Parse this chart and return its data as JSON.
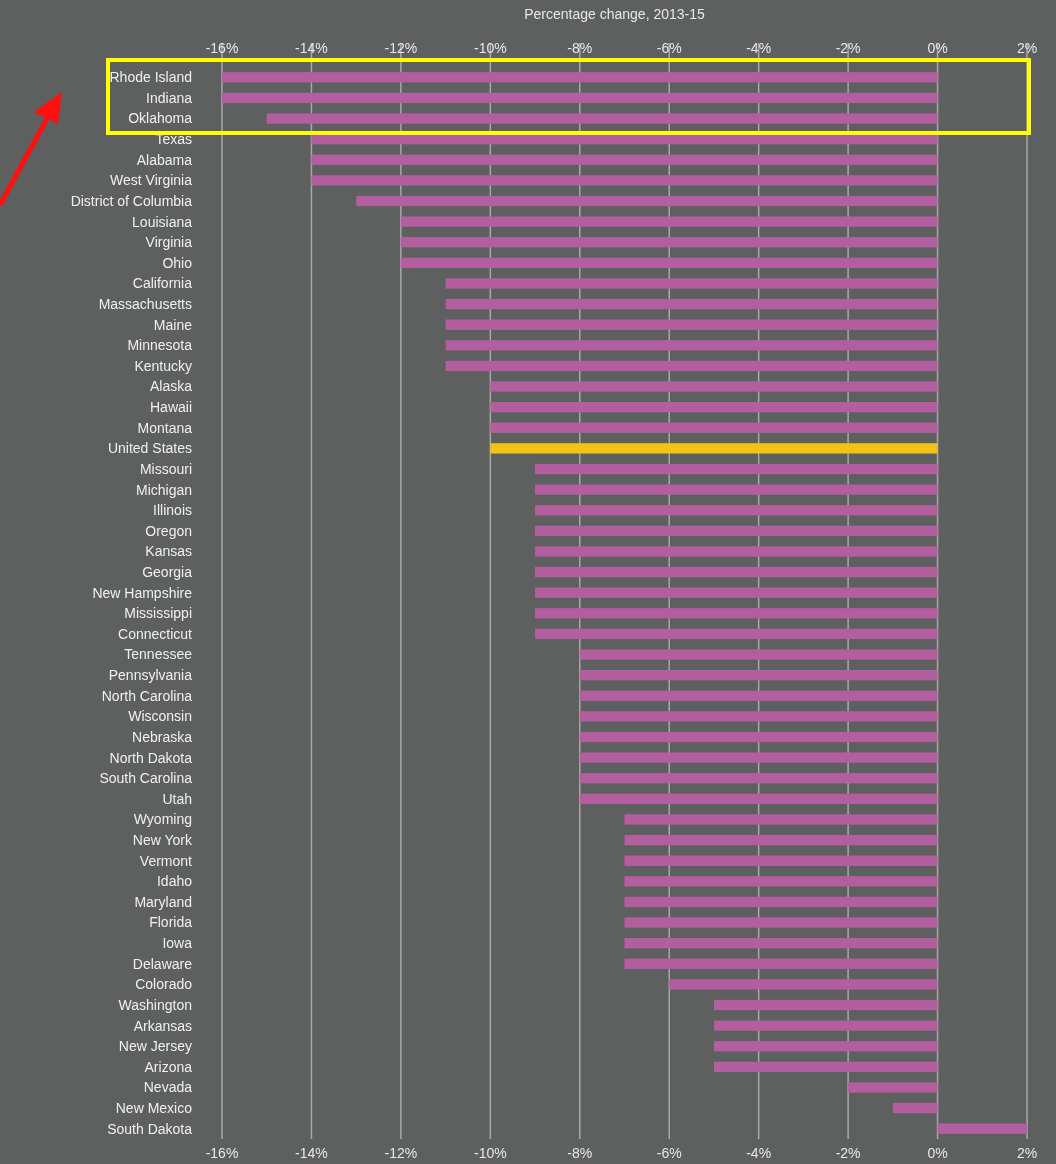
{
  "chart_data": {
    "type": "bar",
    "orientation": "horizontal",
    "x2label": "Percentage change, 2013-15",
    "categories": [
      "Rhode Island",
      "Indiana",
      "Oklahoma",
      "Texas",
      "Alabama",
      "West Virginia",
      "District of Columbia",
      "Louisiana",
      "Virginia",
      "Ohio",
      "California",
      "Massachusetts",
      "Maine",
      "Minnesota",
      "Kentucky",
      "Alaska",
      "Hawaii",
      "Montana",
      "United States",
      "Missouri",
      "Michigan",
      "Illinois",
      "Oregon",
      "Kansas",
      "Georgia",
      "New Hampshire",
      "Mississippi",
      "Connecticut",
      "Tennessee",
      "Pennsylvania",
      "North Carolina",
      "Wisconsin",
      "Nebraska",
      "North Dakota",
      "South Carolina",
      "Utah",
      "Wyoming",
      "New York",
      "Vermont",
      "Idaho",
      "Maryland",
      "Florida",
      "Iowa",
      "Delaware",
      "Colorado",
      "Washington",
      "Arkansas",
      "New Jersey",
      "Arizona",
      "Nevada",
      "New Mexico",
      "South Dakota"
    ],
    "values": [
      -16,
      -16,
      -15,
      -14,
      -14,
      -14,
      -13,
      -12,
      -12,
      -12,
      -11,
      -11,
      -11,
      -11,
      -11,
      -10,
      -10,
      -10,
      -10,
      -9,
      -9,
      -9,
      -9,
      -9,
      -9,
      -9,
      -9,
      -9,
      -8,
      -8,
      -8,
      -8,
      -8,
      -8,
      -8,
      -8,
      -7,
      -7,
      -7,
      -7,
      -7,
      -7,
      -7,
      -7,
      -6,
      -5,
      -5,
      -5,
      -5,
      -2,
      -1,
      2
    ],
    "colors": [
      "#b35e9e",
      "#b35e9e",
      "#b35e9e",
      "#b35e9e",
      "#b35e9e",
      "#b35e9e",
      "#b35e9e",
      "#b35e9e",
      "#b35e9e",
      "#b35e9e",
      "#b35e9e",
      "#b35e9e",
      "#b35e9e",
      "#b35e9e",
      "#b35e9e",
      "#b35e9e",
      "#b35e9e",
      "#b35e9e",
      "#f2c314",
      "#b35e9e",
      "#b35e9e",
      "#b35e9e",
      "#b35e9e",
      "#b35e9e",
      "#b35e9e",
      "#b35e9e",
      "#b35e9e",
      "#b35e9e",
      "#b35e9e",
      "#b35e9e",
      "#b35e9e",
      "#b35e9e",
      "#b35e9e",
      "#b35e9e",
      "#b35e9e",
      "#b35e9e",
      "#b35e9e",
      "#b35e9e",
      "#b35e9e",
      "#b35e9e",
      "#b35e9e",
      "#b35e9e",
      "#b35e9e",
      "#b35e9e",
      "#b35e9e",
      "#b35e9e",
      "#b35e9e",
      "#b35e9e",
      "#b35e9e",
      "#b35e9e",
      "#b35e9e",
      "#b35e9e"
    ],
    "xlim": [
      -16,
      2
    ],
    "xticks": [
      {
        "value": -16,
        "label": "-16%"
      },
      {
        "value": -14,
        "label": "-14%"
      },
      {
        "value": -12,
        "label": "-12%"
      },
      {
        "value": -10,
        "label": "-10%"
      },
      {
        "value": -8,
        "label": "-8%"
      },
      {
        "value": -6,
        "label": "-6%"
      },
      {
        "value": -4,
        "label": "-4%"
      },
      {
        "value": -2,
        "label": "-2%"
      },
      {
        "value": 0,
        "label": "0%"
      },
      {
        "value": 2,
        "label": "2%"
      }
    ],
    "x2lim": [
      -16,
      2
    ],
    "x2ticks": [
      {
        "value": -16,
        "label": "-16%"
      },
      {
        "value": -14,
        "label": "-14%"
      },
      {
        "value": -12,
        "label": "-12%"
      },
      {
        "value": -10,
        "label": "-10%"
      },
      {
        "value": -8,
        "label": "-8%"
      },
      {
        "value": -6,
        "label": "-6%"
      },
      {
        "value": -4,
        "label": "-4%"
      },
      {
        "value": -2,
        "label": "-2%"
      },
      {
        "value": 0,
        "label": "0%"
      },
      {
        "value": 2,
        "label": "2%"
      }
    ],
    "grid": "x"
  }
}
